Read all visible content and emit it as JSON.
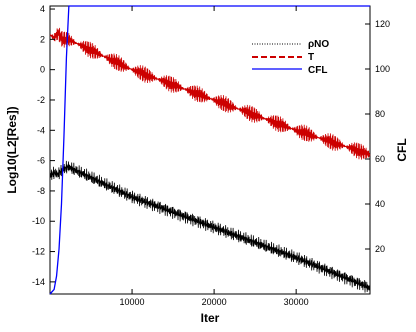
{
  "chart_data": {
    "type": "line",
    "xlabel": "Iter",
    "ylabel_left": "Log10(L2[Res])",
    "ylabel_right": "CFL",
    "xlim": [
      0,
      39000
    ],
    "ylim_left": [
      -14.8,
      4.2
    ],
    "ylim_right": [
      0,
      128
    ],
    "x_ticks": [
      10000,
      20000,
      30000
    ],
    "y_ticks_left": [
      4,
      2,
      0,
      -2,
      -4,
      -6,
      -8,
      -10,
      -12,
      -14
    ],
    "y_ticks_right": [
      120,
      100,
      80,
      60,
      40,
      20
    ],
    "grid": false,
    "legend_position": "top-right",
    "series": [
      {
        "name": "ρNO",
        "axis": "left",
        "color": "#000000",
        "style": "dotted",
        "points": [
          [
            0,
            -7.0
          ],
          [
            500,
            -6.8
          ],
          [
            1000,
            -6.9
          ],
          [
            1500,
            -6.6
          ],
          [
            2200,
            -6.4
          ],
          [
            10000,
            -8.4
          ],
          [
            20000,
            -10.4
          ],
          [
            30000,
            -12.4
          ],
          [
            39000,
            -14.4
          ]
        ],
        "band_width": 0.45
      },
      {
        "name": "T",
        "axis": "left",
        "color": "#cc0000",
        "style": "dashed",
        "points": [
          [
            0,
            2.3
          ],
          [
            500,
            2.1
          ],
          [
            1000,
            2.4
          ],
          [
            1500,
            2.0
          ],
          [
            2200,
            2.0
          ],
          [
            10000,
            0.0
          ],
          [
            20000,
            -2.0
          ],
          [
            30000,
            -4.0
          ],
          [
            39000,
            -5.6
          ]
        ],
        "band_width": 0.55
      },
      {
        "name": "CFL",
        "axis": "right",
        "color": "#0000ff",
        "style": "solid",
        "points": [
          [
            0,
            0
          ],
          [
            500,
            2
          ],
          [
            800,
            8
          ],
          [
            1100,
            20
          ],
          [
            1400,
            40
          ],
          [
            1700,
            70
          ],
          [
            2000,
            105
          ],
          [
            2300,
            128
          ],
          [
            39000,
            128
          ]
        ]
      }
    ]
  }
}
